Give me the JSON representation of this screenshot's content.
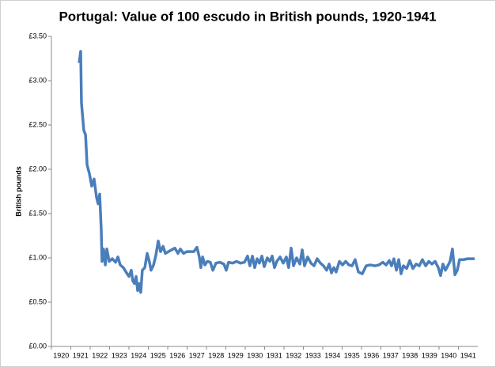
{
  "chart_data": {
    "type": "line",
    "title": "Portugal: Value of 100 escudo in British pounds, 1920-1941",
    "y_label": "British pounds",
    "xlim": [
      1920,
      1942
    ],
    "xticks": [
      1920,
      1921,
      1922,
      1923,
      1924,
      1925,
      1926,
      1927,
      1928,
      1929,
      1930,
      1931,
      1932,
      1933,
      1934,
      1935,
      1936,
      1937,
      1938,
      1939,
      1940,
      1941
    ],
    "ylim": [
      0,
      3.5
    ],
    "yticks": [
      {
        "value": 0,
        "label": "£0.00"
      },
      {
        "value": 0.5,
        "label": "£0.50"
      },
      {
        "value": 1,
        "label": "£1.00"
      },
      {
        "value": 1.5,
        "label": "£1.50"
      },
      {
        "value": 2,
        "label": "£2.00"
      },
      {
        "value": 2.5,
        "label": "£2.50"
      },
      {
        "value": 3,
        "label": "£3.00"
      },
      {
        "value": 3.5,
        "label": "£3.50"
      }
    ],
    "grid": false,
    "series": [
      {
        "color": "#4a7ebb",
        "x": [
          1921.43,
          1921.51,
          1921.55,
          1921.67,
          1921.76,
          1921.84,
          1921.96,
          1922.08,
          1922.2,
          1922.33,
          1922.41,
          1922.49,
          1922.57,
          1922.61,
          1922.69,
          1922.78,
          1922.86,
          1922.98,
          1923.14,
          1923.31,
          1923.43,
          1923.55,
          1923.71,
          1923.88,
          1924.0,
          1924.12,
          1924.2,
          1924.29,
          1924.37,
          1924.45,
          1924.53,
          1924.61,
          1924.69,
          1924.82,
          1924.94,
          1925.06,
          1925.14,
          1925.27,
          1925.39,
          1925.51,
          1925.63,
          1925.76,
          1925.88,
          1926.04,
          1926.2,
          1926.37,
          1926.53,
          1926.65,
          1926.82,
          1926.98,
          1927.14,
          1927.35,
          1927.51,
          1927.63,
          1927.71,
          1927.8,
          1927.92,
          1928.04,
          1928.2,
          1928.33,
          1928.49,
          1928.69,
          1928.9,
          1929.02,
          1929.14,
          1929.35,
          1929.55,
          1929.76,
          1929.96,
          1930.12,
          1930.24,
          1930.37,
          1930.49,
          1930.61,
          1930.73,
          1930.86,
          1930.98,
          1931.14,
          1931.27,
          1931.39,
          1931.51,
          1931.63,
          1931.8,
          1931.96,
          1932.12,
          1932.24,
          1932.37,
          1932.49,
          1932.65,
          1932.82,
          1932.94,
          1933.06,
          1933.22,
          1933.39,
          1933.55,
          1933.71,
          1933.88,
          1934.04,
          1934.2,
          1934.33,
          1934.45,
          1934.57,
          1934.69,
          1934.86,
          1935.02,
          1935.18,
          1935.35,
          1935.51,
          1935.67,
          1935.84,
          1936.04,
          1936.24,
          1936.45,
          1936.69,
          1936.9,
          1937.1,
          1937.27,
          1937.43,
          1937.55,
          1937.67,
          1937.8,
          1937.92,
          1938.04,
          1938.16,
          1938.33,
          1938.49,
          1938.65,
          1938.82,
          1938.98,
          1939.14,
          1939.31,
          1939.47,
          1939.63,
          1939.8,
          1939.96,
          1940.08,
          1940.2,
          1940.33,
          1940.45,
          1940.57,
          1940.69,
          1940.82,
          1940.94,
          1941.06,
          1941.27,
          1941.47,
          1941.67,
          1941.84
        ],
        "values": [
          3.2,
          3.33,
          2.75,
          2.44,
          2.39,
          2.05,
          1.95,
          1.81,
          1.89,
          1.68,
          1.61,
          1.72,
          1.32,
          0.96,
          1.1,
          0.92,
          1.1,
          0.96,
          0.99,
          0.95,
          1.01,
          0.92,
          0.89,
          0.83,
          0.79,
          0.86,
          0.74,
          0.71,
          0.79,
          0.63,
          0.71,
          0.61,
          0.86,
          0.89,
          1.05,
          0.95,
          0.86,
          0.92,
          1.03,
          1.19,
          1.07,
          1.13,
          1.05,
          1.07,
          1.09,
          1.11,
          1.05,
          1.1,
          1.05,
          1.07,
          1.07,
          1.07,
          1.12,
          1.01,
          0.89,
          1.01,
          0.92,
          0.96,
          0.95,
          0.86,
          0.94,
          0.95,
          0.93,
          0.86,
          0.95,
          0.94,
          0.96,
          0.94,
          0.95,
          1.02,
          0.91,
          1.02,
          0.89,
          0.99,
          0.94,
          1.02,
          0.9,
          1.0,
          0.96,
          1.02,
          0.89,
          0.96,
          1.01,
          0.94,
          1.01,
          0.89,
          1.11,
          0.91,
          1.0,
          0.93,
          1.09,
          0.91,
          1.01,
          0.94,
          0.91,
          0.99,
          0.94,
          0.91,
          0.86,
          0.93,
          0.83,
          0.89,
          0.84,
          0.96,
          0.92,
          0.96,
          0.92,
          0.91,
          0.98,
          0.84,
          0.82,
          0.91,
          0.92,
          0.91,
          0.92,
          0.95,
          0.92,
          0.97,
          0.91,
          0.99,
          0.86,
          0.98,
          0.82,
          0.91,
          0.88,
          0.97,
          0.88,
          0.93,
          0.91,
          0.98,
          0.91,
          0.96,
          0.93,
          0.96,
          0.89,
          0.8,
          0.93,
          0.86,
          0.91,
          0.96,
          1.1,
          0.81,
          0.86,
          0.98,
          0.98,
          0.99,
          0.99,
          0.99
        ]
      }
    ]
  }
}
